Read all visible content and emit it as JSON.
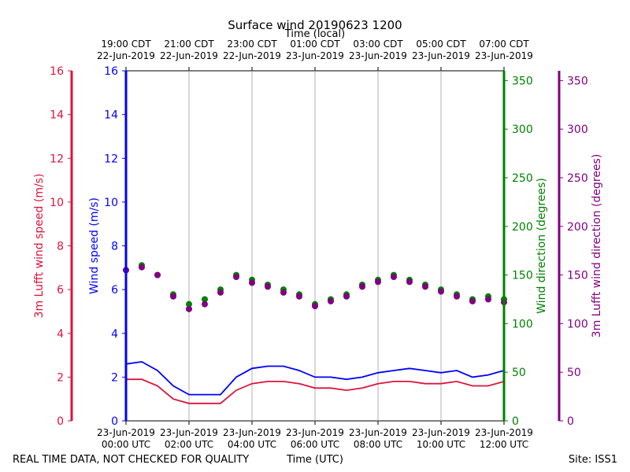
{
  "chart_data": {
    "type": "scatter",
    "title": "Surface wind 20190623 1200",
    "top_axis_label": "Time (local)",
    "xlabel": "Time (UTC)",
    "footer_left": "REAL TIME DATA, NOT CHECKED FOR QUALITY",
    "footer_right": "Site: ISS1",
    "x_hours_range": [
      0,
      12
    ],
    "bottom_ticks": [
      {
        "hour": 0,
        "line1": "23-Jun-2019",
        "line2": "00:00 UTC"
      },
      {
        "hour": 2,
        "line1": "23-Jun-2019",
        "line2": "02:00 UTC"
      },
      {
        "hour": 4,
        "line1": "23-Jun-2019",
        "line2": "04:00 UTC"
      },
      {
        "hour": 6,
        "line1": "23-Jun-2019",
        "line2": "06:00 UTC"
      },
      {
        "hour": 8,
        "line1": "23-Jun-2019",
        "line2": "08:00 UTC"
      },
      {
        "hour": 10,
        "line1": "23-Jun-2019",
        "line2": "10:00 UTC"
      },
      {
        "hour": 12,
        "line1": "23-Jun-2019",
        "line2": "12:00 UTC"
      }
    ],
    "top_ticks": [
      {
        "hour": 0,
        "line1": "19:00 CDT",
        "line2": "22-Jun-2019"
      },
      {
        "hour": 2,
        "line1": "21:00 CDT",
        "line2": "22-Jun-2019"
      },
      {
        "hour": 4,
        "line1": "23:00 CDT",
        "line2": "22-Jun-2019"
      },
      {
        "hour": 6,
        "line1": "01:00 CDT",
        "line2": "23-Jun-2019"
      },
      {
        "hour": 8,
        "line1": "03:00 CDT",
        "line2": "23-Jun-2019"
      },
      {
        "hour": 10,
        "line1": "05:00 CDT",
        "line2": "23-Jun-2019"
      },
      {
        "hour": 12,
        "line1": "07:00 CDT",
        "line2": "23-Jun-2019"
      }
    ],
    "axes": {
      "lufft_speed": {
        "label": "3m Lufft wind speed (m/s)",
        "ylim": [
          0,
          16
        ],
        "ticks": [
          0,
          2,
          4,
          6,
          8,
          10,
          12,
          14,
          16
        ],
        "color": "#dc143c"
      },
      "wind_speed": {
        "label": "Wind speed (m/s)",
        "ylim": [
          0,
          16
        ],
        "ticks": [
          0,
          2,
          4,
          6,
          8,
          10,
          12,
          14,
          16
        ],
        "color": "#0000ff"
      },
      "wind_direction": {
        "label": "Wind direction (degrees)",
        "ylim": [
          0,
          360
        ],
        "ticks": [
          0,
          50,
          100,
          150,
          200,
          250,
          300,
          350
        ],
        "color": "#008000"
      },
      "lufft_direction": {
        "label": "3m Lufft wind direction (degrees)",
        "ylim": [
          0,
          360
        ],
        "ticks": [
          0,
          50,
          100,
          150,
          200,
          250,
          300,
          350
        ],
        "color": "#800080"
      }
    },
    "series": [
      {
        "name": "Wind speed",
        "axis": "wind_speed",
        "kind": "line",
        "color": "#0000ff",
        "x": [
          0,
          0.5,
          1,
          1.5,
          2,
          2.5,
          3,
          3.5,
          4,
          4.5,
          5,
          5.5,
          6,
          6.5,
          7,
          7.5,
          8,
          8.5,
          9,
          9.5,
          10,
          10.5,
          11,
          11.5,
          12
        ],
        "y": [
          2.6,
          2.7,
          2.3,
          1.6,
          1.2,
          1.2,
          1.2,
          2.0,
          2.4,
          2.5,
          2.5,
          2.3,
          2.0,
          2.0,
          1.9,
          2.0,
          2.2,
          2.3,
          2.4,
          2.3,
          2.2,
          2.3,
          2.0,
          2.1,
          2.3
        ]
      },
      {
        "name": "3m Lufft wind speed",
        "axis": "lufft_speed",
        "kind": "line",
        "color": "#dc143c",
        "x": [
          0,
          0.5,
          1,
          1.5,
          2,
          2.5,
          3,
          3.5,
          4,
          4.5,
          5,
          5.5,
          6,
          6.5,
          7,
          7.5,
          8,
          8.5,
          9,
          9.5,
          10,
          10.5,
          11,
          11.5,
          12
        ],
        "y": [
          1.9,
          1.9,
          1.6,
          1.0,
          0.8,
          0.8,
          0.8,
          1.4,
          1.7,
          1.8,
          1.8,
          1.7,
          1.5,
          1.5,
          1.4,
          1.5,
          1.7,
          1.8,
          1.8,
          1.7,
          1.7,
          1.8,
          1.6,
          1.6,
          1.8
        ]
      },
      {
        "name": "Wind direction",
        "axis": "wind_direction",
        "kind": "scatter",
        "color": "#008000",
        "x": [
          0,
          0.5,
          1,
          1.5,
          2,
          2.5,
          3,
          3.5,
          4,
          4.5,
          5,
          5.5,
          6,
          6.5,
          7,
          7.5,
          8,
          8.5,
          9,
          9.5,
          10,
          10.5,
          11,
          11.5,
          12
        ],
        "y": [
          155,
          160,
          150,
          130,
          120,
          125,
          135,
          150,
          145,
          140,
          135,
          130,
          120,
          125,
          130,
          140,
          145,
          150,
          145,
          140,
          135,
          130,
          125,
          128,
          125
        ]
      },
      {
        "name": "3m Lufft wind direction",
        "axis": "lufft_direction",
        "kind": "scatter",
        "color": "#800080",
        "x": [
          0,
          0.5,
          1,
          1.5,
          2,
          2.5,
          3,
          3.5,
          4,
          4.5,
          5,
          5.5,
          6,
          6.5,
          7,
          7.5,
          8,
          8.5,
          9,
          9.5,
          10,
          10.5,
          11,
          11.5,
          12
        ],
        "y": [
          155,
          158,
          150,
          128,
          115,
          120,
          132,
          148,
          142,
          138,
          132,
          128,
          118,
          123,
          128,
          138,
          143,
          148,
          143,
          138,
          133,
          128,
          123,
          125,
          122
        ]
      }
    ]
  }
}
